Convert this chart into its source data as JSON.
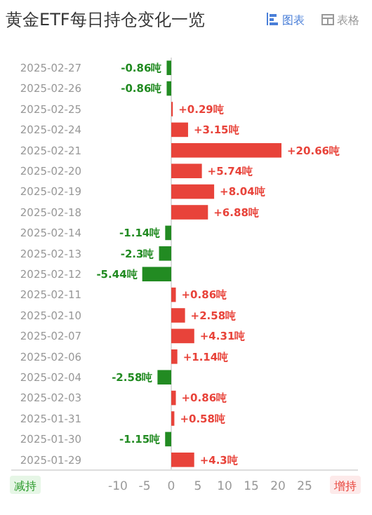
{
  "chart_data": {
    "type": "bar",
    "orientation": "horizontal",
    "title": "黄金ETF每日持仓变化一览",
    "categories": [
      "2025-02-27",
      "2025-02-26",
      "2025-02-25",
      "2025-02-24",
      "2025-02-21",
      "2025-02-20",
      "2025-02-19",
      "2025-02-18",
      "2025-02-14",
      "2025-02-13",
      "2025-02-12",
      "2025-02-11",
      "2025-02-10",
      "2025-02-07",
      "2025-02-06",
      "2025-02-04",
      "2025-02-03",
      "2025-01-31",
      "2025-01-30",
      "2025-01-29"
    ],
    "values": [
      -0.86,
      -0.86,
      0.29,
      3.15,
      20.66,
      5.74,
      8.04,
      6.88,
      -1.14,
      -2.3,
      -5.44,
      0.86,
      2.58,
      4.31,
      1.14,
      -2.58,
      0.86,
      0.58,
      -1.15,
      4.3
    ],
    "value_labels": [
      "-0.86吨",
      "-0.86吨",
      "+0.29吨",
      "+3.15吨",
      "+20.66吨",
      "+5.74吨",
      "+8.04吨",
      "+6.88吨",
      "-1.14吨",
      "-2.3吨",
      "-5.44吨",
      "+0.86吨",
      "+2.58吨",
      "+4.31吨",
      "+1.14吨",
      "-2.58吨",
      "+0.86吨",
      "+0.58吨",
      "-1.15吨",
      "+4.3吨"
    ],
    "colors": [
      "#228b22",
      "#228b22",
      "#e8433a",
      "#e8433a",
      "#e8433a",
      "#e8433a",
      "#e8433a",
      "#e8433a",
      "#228b22",
      "#228b22",
      "#228b22",
      "#e8433a",
      "#e8433a",
      "#e8433a",
      "#e8433a",
      "#228b22",
      "#e8433a",
      "#e8433a",
      "#228b22",
      "#e8433a"
    ],
    "xlim": [
      -30,
      35
    ],
    "xticks": [
      -10,
      -5,
      0,
      5,
      10,
      15,
      20,
      25
    ],
    "annotations": [
      "图表",
      "表格",
      "减持",
      "增持"
    ]
  }
}
